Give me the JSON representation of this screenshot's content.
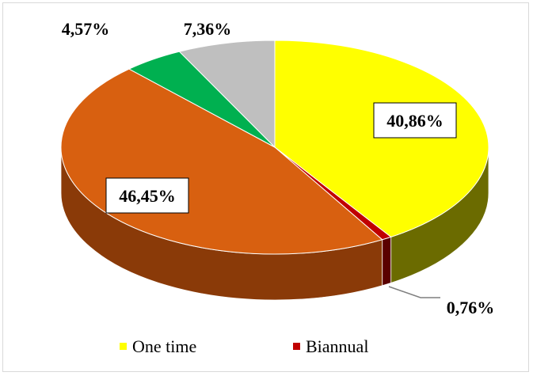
{
  "chart_data": {
    "type": "pie",
    "style": "3d",
    "title": "",
    "slices": [
      {
        "label": "40,86%",
        "value": 40.86,
        "color": "#ffff00",
        "side_color": "#6b6b00"
      },
      {
        "label": "0,76%",
        "value": 0.76,
        "color": "#c00000",
        "side_color": "#5a0000"
      },
      {
        "label": "46,45%",
        "value": 46.45,
        "color": "#d86010",
        "side_color": "#8a3a08"
      },
      {
        "label": "4,57%",
        "value": 4.57,
        "color": "#00b050",
        "side_color": "#006030"
      },
      {
        "label": "7,36%",
        "value": 7.36,
        "color": "#bfbfbf",
        "side_color": "#7f7f7f"
      }
    ],
    "legend": {
      "position": "bottom",
      "entries": [
        {
          "name": "One time",
          "color": "#ffff00"
        },
        {
          "name": "Biannual",
          "color": "#c00000"
        }
      ]
    }
  }
}
